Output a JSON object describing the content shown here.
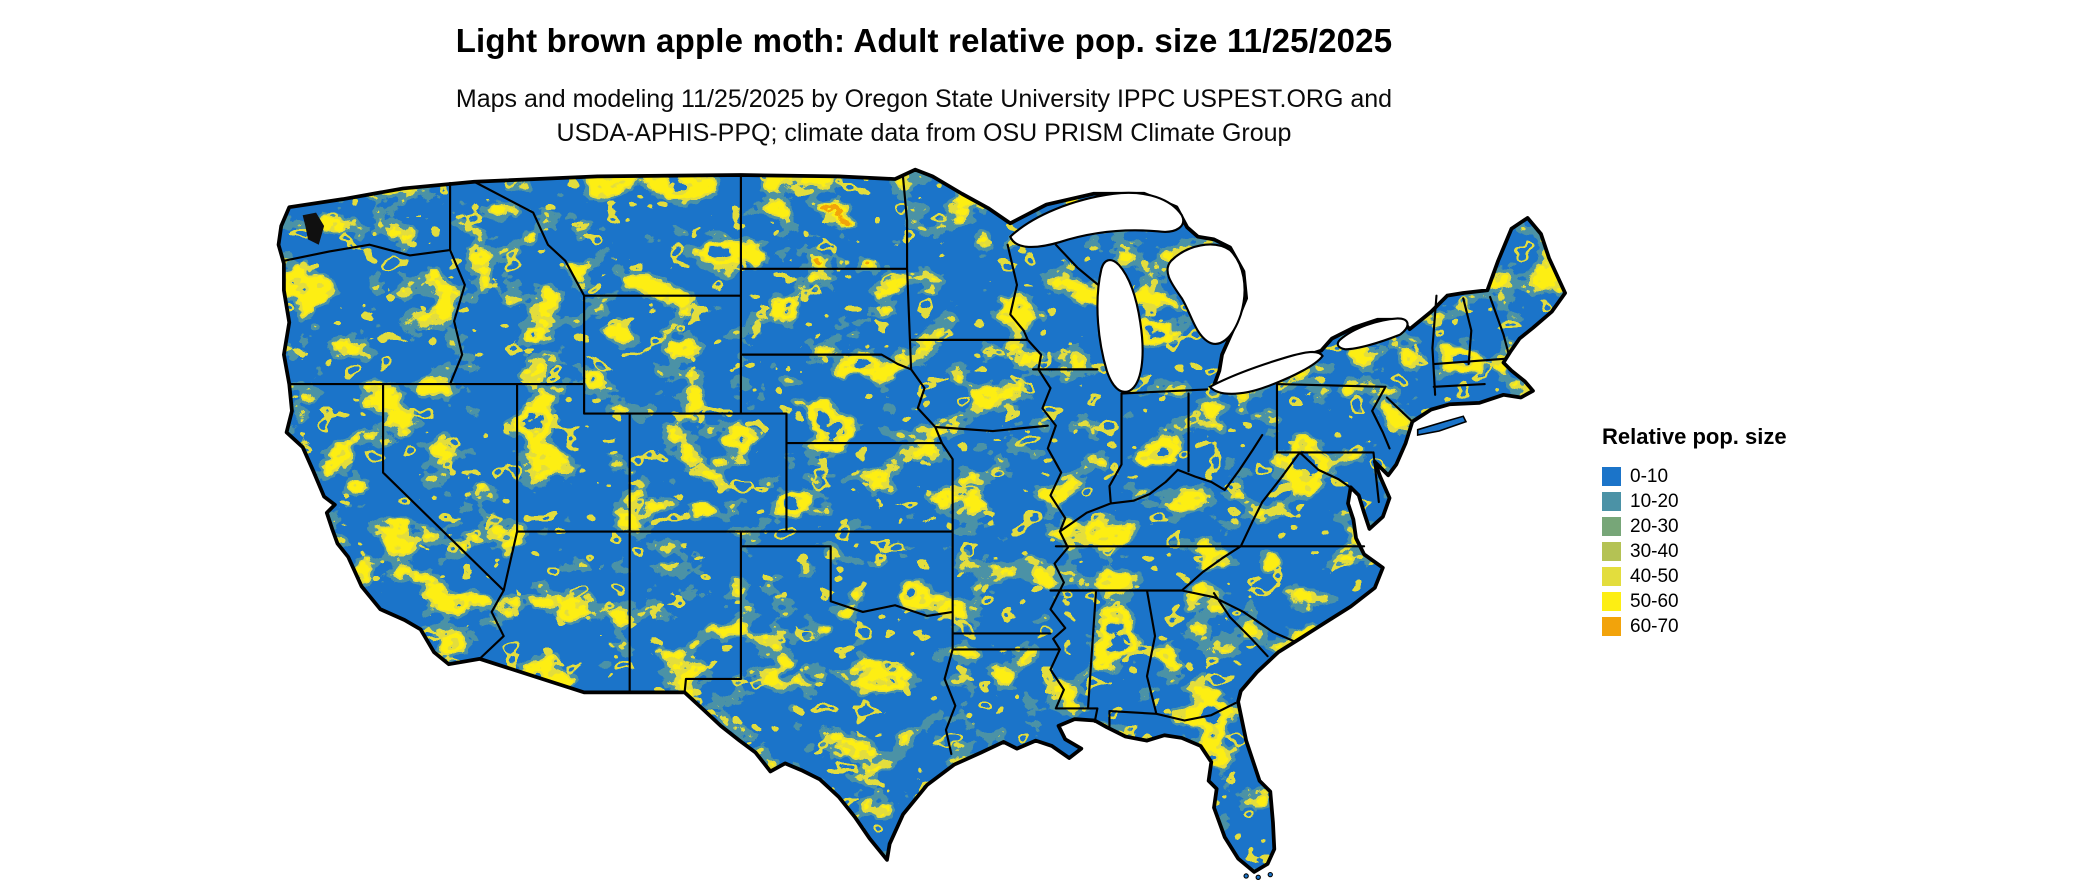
{
  "title": "Light brown apple moth: Adult relative pop. size 11/25/2025",
  "subtitle": {
    "line1": "Maps and modeling 11/25/2025 by Oregon State University IPPC USPEST.ORG and",
    "line2": "USDA-APHIS-PPQ; climate data from OSU PRISM Climate Group"
  },
  "legend": {
    "title": "Relative pop. size",
    "items": [
      {
        "label": "0-10",
        "color": "#1b74c9"
      },
      {
        "label": "10-20",
        "color": "#4b92a6"
      },
      {
        "label": "20-30",
        "color": "#77a678"
      },
      {
        "label": "30-40",
        "color": "#b4c254"
      },
      {
        "label": "40-50",
        "color": "#e3dd3d"
      },
      {
        "label": "50-60",
        "color": "#fdee13"
      },
      {
        "label": "60-70",
        "color": "#f2a30b"
      }
    ]
  },
  "map": {
    "water_color": "#ffffff",
    "border_color": "#000000"
  }
}
